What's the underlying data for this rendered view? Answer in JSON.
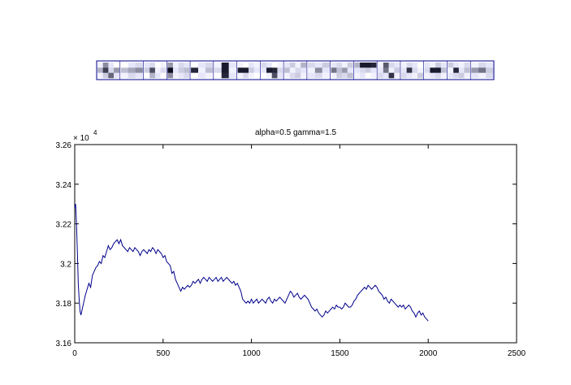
{
  "strip": {
    "rows": 3,
    "patches": [
      {
        "cols": 4,
        "cells": [
          0.95,
          0.55,
          0.9,
          1.0,
          0.7,
          0.25,
          0.85,
          0.6,
          0.95,
          0.8,
          0.4,
          0.9
        ]
      },
      {
        "cols": 3,
        "cells": [
          1.0,
          0.9,
          0.85,
          0.75,
          0.65,
          0.55,
          0.95,
          0.85,
          0.9
        ]
      },
      {
        "cols": 4,
        "cells": [
          0.9,
          0.85,
          1.0,
          0.95,
          0.8,
          0.3,
          0.95,
          0.85,
          1.0,
          0.7,
          0.9,
          1.0
        ]
      },
      {
        "cols": 4,
        "cells": [
          0.6,
          0.95,
          0.85,
          0.9,
          0.05,
          0.9,
          0.8,
          0.75,
          0.55,
          0.95,
          0.9,
          0.85
        ]
      },
      {
        "cols": 3,
        "cells": [
          1.0,
          0.9,
          0.85,
          0.15,
          0.95,
          0.75,
          1.0,
          0.9,
          0.95
        ]
      },
      {
        "cols": 3,
        "cells": [
          0.95,
          0.1,
          0.9,
          0.85,
          0.1,
          0.95,
          1.0,
          0.15,
          0.9
        ]
      },
      {
        "cols": 4,
        "cells": [
          0.95,
          1.0,
          0.9,
          0.95,
          0.1,
          0.1,
          0.8,
          0.9,
          0.95,
          0.85,
          0.95,
          1.0
        ]
      },
      {
        "cols": 4,
        "cells": [
          0.85,
          0.9,
          1.0,
          0.95,
          0.9,
          0.1,
          0.15,
          0.85,
          1.0,
          0.95,
          0.3,
          0.9
        ]
      },
      {
        "cols": 4,
        "cells": [
          0.9,
          0.8,
          0.95,
          0.7,
          0.75,
          0.95,
          0.85,
          0.9,
          0.95,
          0.85,
          0.8,
          0.95
        ]
      },
      {
        "cols": 3,
        "cells": [
          0.85,
          0.9,
          0.8,
          0.95,
          0.55,
          0.9,
          0.9,
          0.85,
          0.95
        ]
      },
      {
        "cols": 4,
        "cells": [
          0.9,
          0.85,
          0.95,
          0.8,
          0.45,
          0.75,
          0.6,
          0.9,
          0.95,
          0.8,
          0.85,
          0.75
        ]
      },
      {
        "cols": 4,
        "cells": [
          0.7,
          0.1,
          0.1,
          0.15,
          0.9,
          0.85,
          0.8,
          0.9,
          0.95,
          0.9,
          1.0,
          0.95
        ]
      },
      {
        "cols": 4,
        "cells": [
          0.95,
          0.35,
          0.85,
          0.9,
          0.9,
          0.45,
          0.95,
          0.8,
          0.85,
          0.9,
          0.2,
          0.95
        ]
      },
      {
        "cols": 4,
        "cells": [
          0.95,
          0.85,
          0.9,
          1.0,
          0.9,
          0.2,
          0.85,
          0.95,
          0.85,
          0.9,
          0.95,
          0.8
        ]
      },
      {
        "cols": 4,
        "cells": [
          0.9,
          0.95,
          0.8,
          0.9,
          0.85,
          0.1,
          0.1,
          0.75,
          0.95,
          0.9,
          0.85,
          0.95
        ]
      },
      {
        "cols": 4,
        "cells": [
          0.8,
          0.9,
          0.95,
          0.85,
          0.95,
          0.15,
          0.9,
          0.75,
          0.9,
          0.85,
          0.8,
          0.95
        ]
      },
      {
        "cols": 3,
        "cells": [
          0.95,
          0.85,
          0.9,
          0.6,
          0.45,
          0.8,
          0.9,
          0.95,
          0.85
        ]
      }
    ]
  },
  "chart_data": {
    "type": "line",
    "title": "alpha=0.5  gamma=1.5",
    "xlabel": "",
    "ylabel": "",
    "y_exponent_label": "× 10",
    "y_exponent": "4",
    "xlim": [
      0,
      2500
    ],
    "ylim": [
      31600,
      32600
    ],
    "x_ticks": [
      0,
      500,
      1000,
      1500,
      2000,
      2500
    ],
    "x_tick_labels": [
      "0",
      "500",
      "1000",
      "1500",
      "2000",
      "2500"
    ],
    "y_ticks": [
      31600,
      31800,
      32000,
      32200,
      32400,
      32600
    ],
    "y_tick_labels": [
      "3.16",
      "3.18",
      "3.2",
      "3.22",
      "3.24",
      "3.26"
    ],
    "grid": false,
    "line_color": "#00008b",
    "series": [
      {
        "points": [
          [
            0,
            32280
          ],
          [
            5,
            32300
          ],
          [
            10,
            32200
          ],
          [
            15,
            32060
          ],
          [
            20,
            31900
          ],
          [
            25,
            31820
          ],
          [
            30,
            31760
          ],
          [
            35,
            31740
          ],
          [
            40,
            31760
          ],
          [
            50,
            31800
          ],
          [
            60,
            31840
          ],
          [
            70,
            31870
          ],
          [
            80,
            31900
          ],
          [
            90,
            31880
          ],
          [
            100,
            31940
          ],
          [
            110,
            31960
          ],
          [
            120,
            31980
          ],
          [
            130,
            31990
          ],
          [
            140,
            32010
          ],
          [
            150,
            32000
          ],
          [
            160,
            32040
          ],
          [
            170,
            32030
          ],
          [
            180,
            32060
          ],
          [
            190,
            32090
          ],
          [
            200,
            32070
          ],
          [
            210,
            32080
          ],
          [
            220,
            32100
          ],
          [
            230,
            32110
          ],
          [
            240,
            32120
          ],
          [
            250,
            32100
          ],
          [
            260,
            32120
          ],
          [
            270,
            32090
          ],
          [
            280,
            32080
          ],
          [
            290,
            32070
          ],
          [
            300,
            32060
          ],
          [
            310,
            32080
          ],
          [
            320,
            32070
          ],
          [
            330,
            32060
          ],
          [
            340,
            32080
          ],
          [
            350,
            32070
          ],
          [
            360,
            32060
          ],
          [
            370,
            32040
          ],
          [
            380,
            32060
          ],
          [
            390,
            32070
          ],
          [
            400,
            32060
          ],
          [
            410,
            32050
          ],
          [
            420,
            32070
          ],
          [
            430,
            32060
          ],
          [
            440,
            32080
          ],
          [
            450,
            32070
          ],
          [
            460,
            32050
          ],
          [
            470,
            32070
          ],
          [
            480,
            32060
          ],
          [
            490,
            32050
          ],
          [
            500,
            32030
          ],
          [
            510,
            32040
          ],
          [
            520,
            32010
          ],
          [
            530,
            32000
          ],
          [
            540,
            31990
          ],
          [
            550,
            31950
          ],
          [
            560,
            31960
          ],
          [
            570,
            31920
          ],
          [
            580,
            31900
          ],
          [
            590,
            31880
          ],
          [
            600,
            31860
          ],
          [
            610,
            31880
          ],
          [
            620,
            31870
          ],
          [
            630,
            31880
          ],
          [
            640,
            31890
          ],
          [
            650,
            31880
          ],
          [
            660,
            31890
          ],
          [
            670,
            31910
          ],
          [
            680,
            31900
          ],
          [
            690,
            31910
          ],
          [
            700,
            31920
          ],
          [
            710,
            31900
          ],
          [
            720,
            31920
          ],
          [
            730,
            31930
          ],
          [
            740,
            31920
          ],
          [
            750,
            31910
          ],
          [
            760,
            31930
          ],
          [
            770,
            31920
          ],
          [
            780,
            31910
          ],
          [
            790,
            31920
          ],
          [
            800,
            31930
          ],
          [
            810,
            31910
          ],
          [
            820,
            31920
          ],
          [
            830,
            31930
          ],
          [
            840,
            31910
          ],
          [
            850,
            31920
          ],
          [
            860,
            31930
          ],
          [
            870,
            31920
          ],
          [
            880,
            31910
          ],
          [
            890,
            31900
          ],
          [
            900,
            31910
          ],
          [
            910,
            31890
          ],
          [
            920,
            31900
          ],
          [
            930,
            31880
          ],
          [
            940,
            31860
          ],
          [
            950,
            31820
          ],
          [
            960,
            31810
          ],
          [
            970,
            31800
          ],
          [
            980,
            31810
          ],
          [
            990,
            31800
          ],
          [
            1000,
            31820
          ],
          [
            1010,
            31800
          ],
          [
            1020,
            31810
          ],
          [
            1030,
            31820
          ],
          [
            1040,
            31800
          ],
          [
            1050,
            31810
          ],
          [
            1060,
            31820
          ],
          [
            1070,
            31810
          ],
          [
            1080,
            31800
          ],
          [
            1090,
            31820
          ],
          [
            1100,
            31830
          ],
          [
            1110,
            31810
          ],
          [
            1120,
            31800
          ],
          [
            1130,
            31820
          ],
          [
            1140,
            31810
          ],
          [
            1150,
            31820
          ],
          [
            1160,
            31830
          ],
          [
            1170,
            31820
          ],
          [
            1180,
            31810
          ],
          [
            1190,
            31800
          ],
          [
            1200,
            31820
          ],
          [
            1210,
            31840
          ],
          [
            1220,
            31860
          ],
          [
            1230,
            31850
          ],
          [
            1240,
            31830
          ],
          [
            1250,
            31840
          ],
          [
            1260,
            31850
          ],
          [
            1270,
            31830
          ],
          [
            1280,
            31820
          ],
          [
            1290,
            31830
          ],
          [
            1300,
            31840
          ],
          [
            1310,
            31830
          ],
          [
            1320,
            31820
          ],
          [
            1330,
            31800
          ],
          [
            1340,
            31780
          ],
          [
            1350,
            31770
          ],
          [
            1360,
            31760
          ],
          [
            1370,
            31770
          ],
          [
            1380,
            31750
          ],
          [
            1390,
            31740
          ],
          [
            1400,
            31730
          ],
          [
            1410,
            31740
          ],
          [
            1420,
            31760
          ],
          [
            1430,
            31750
          ],
          [
            1440,
            31760
          ],
          [
            1450,
            31770
          ],
          [
            1460,
            31780
          ],
          [
            1470,
            31770
          ],
          [
            1480,
            31790
          ],
          [
            1490,
            31780
          ],
          [
            1500,
            31780
          ],
          [
            1510,
            31770
          ],
          [
            1520,
            31780
          ],
          [
            1530,
            31800
          ],
          [
            1540,
            31790
          ],
          [
            1550,
            31780
          ],
          [
            1560,
            31780
          ],
          [
            1570,
            31790
          ],
          [
            1580,
            31810
          ],
          [
            1590,
            31820
          ],
          [
            1600,
            31840
          ],
          [
            1610,
            31850
          ],
          [
            1620,
            31860
          ],
          [
            1630,
            31870
          ],
          [
            1640,
            31880
          ],
          [
            1650,
            31870
          ],
          [
            1660,
            31890
          ],
          [
            1670,
            31880
          ],
          [
            1680,
            31870
          ],
          [
            1690,
            31880
          ],
          [
            1700,
            31890
          ],
          [
            1710,
            31880
          ],
          [
            1720,
            31860
          ],
          [
            1730,
            31850
          ],
          [
            1740,
            31840
          ],
          [
            1750,
            31820
          ],
          [
            1760,
            31830
          ],
          [
            1770,
            31810
          ],
          [
            1780,
            31800
          ],
          [
            1790,
            31820
          ],
          [
            1800,
            31810
          ],
          [
            1810,
            31800
          ],
          [
            1820,
            31790
          ],
          [
            1830,
            31780
          ],
          [
            1840,
            31790
          ],
          [
            1850,
            31780
          ],
          [
            1860,
            31790
          ],
          [
            1870,
            31770
          ],
          [
            1880,
            31780
          ],
          [
            1890,
            31790
          ],
          [
            1900,
            31780
          ],
          [
            1910,
            31760
          ],
          [
            1920,
            31750
          ],
          [
            1930,
            31730
          ],
          [
            1940,
            31750
          ],
          [
            1950,
            31760
          ],
          [
            1960,
            31740
          ],
          [
            1970,
            31750
          ],
          [
            1980,
            31730
          ],
          [
            1990,
            31720
          ],
          [
            2000,
            31710
          ]
        ]
      }
    ]
  }
}
